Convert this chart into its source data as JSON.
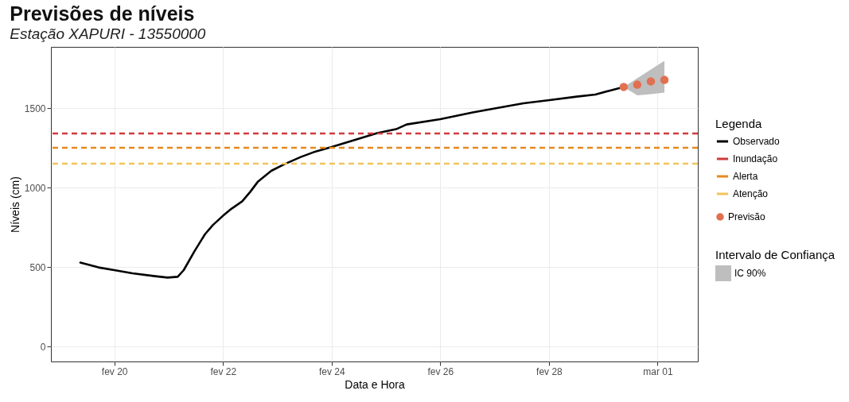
{
  "chart_data": {
    "type": "line",
    "title": "Previsões de níveis",
    "subtitle": "Estação XAPURI - 13550000",
    "xlabel": "Data e Hora",
    "ylabel": "Níveis (cm)",
    "legend_title": "Legenda",
    "annotations": [
      "Intervalo de Confiança",
      "IC 90%"
    ],
    "legend": "right",
    "grid": true,
    "xlim": [
      "--02-18T20:00",
      "--03-01T17:45"
    ],
    "xticks": [
      {
        "value": "--02-20",
        "label": "fev 20"
      },
      {
        "value": "--02-22",
        "label": "fev 22"
      },
      {
        "value": "--02-24",
        "label": "fev 24"
      },
      {
        "value": "--02-26",
        "label": "fev 26"
      },
      {
        "value": "--02-28",
        "label": "fev 28"
      },
      {
        "value": "--03-01",
        "label": "mar 01"
      }
    ],
    "ylim": [
      -95,
      1885
    ],
    "yticks": [
      0,
      500,
      1000,
      1500
    ],
    "series": [
      {
        "name": "Observado",
        "color": "#000000",
        "x": [
          "--02-19T09:00",
          "--02-19T17:00",
          "--02-20T00:00",
          "--02-20T08:00",
          "--02-20T18:00",
          "--02-20T23:30",
          "--02-21T04:00",
          "--02-21T06:40",
          "--02-21T11:20",
          "--02-21T16:00",
          "--02-21T19:30",
          "--02-22T00:00",
          "--02-22T03:50",
          "--02-22T08:30",
          "--02-22T12:00",
          "--02-22T15:30",
          "--02-22T21:20",
          "--02-23T03:10",
          "--02-23T10:20",
          "--02-23T16:00",
          "--02-24T00:00",
          "--02-24T08:40",
          "--02-24T20:10",
          "--02-25T04:30",
          "--02-25T09:10",
          "--02-26T00:00",
          "--02-26T14:20",
          "--02-27T01:00",
          "--02-27T12:45",
          "--02-28T00:15",
          "--02-28T12:15",
          "--02-28T20:30",
          "--02-29T02:20",
          "--02-29T09:00"
        ],
        "values": [
          527,
          497,
          480,
          460,
          442,
          433,
          438,
          480,
          597,
          705,
          763,
          822,
          867,
          913,
          972,
          1038,
          1105,
          1147,
          1192,
          1222,
          1255,
          1293,
          1342,
          1367,
          1397,
          1430,
          1472,
          1500,
          1530,
          1550,
          1572,
          1585,
          1608,
          1633
        ]
      },
      {
        "type": "scatter",
        "name": "Previsão",
        "color": "#e07050",
        "marker": "circle",
        "x": [
          "--02-29T09:00",
          "--02-29T15:00",
          "--02-29T21:00",
          "--03-01T03:00"
        ],
        "values": [
          1633,
          1647,
          1668,
          1677
        ],
        "lower": [
          1633,
          1580,
          1588,
          1597
        ],
        "upper": [
          1633,
          1687,
          1742,
          1797
        ]
      }
    ],
    "ref_lines": [
      {
        "axis": "y",
        "value": 1340,
        "label": "Inundação",
        "color": "#d03b3b",
        "line_style": "dashed"
      },
      {
        "axis": "y",
        "value": 1250,
        "label": "Alerta",
        "color": "#e8891d",
        "line_style": "dashed"
      },
      {
        "axis": "y",
        "value": 1150,
        "label": "Atenção",
        "color": "#f2c45a",
        "line_style": "dashed"
      }
    ]
  }
}
